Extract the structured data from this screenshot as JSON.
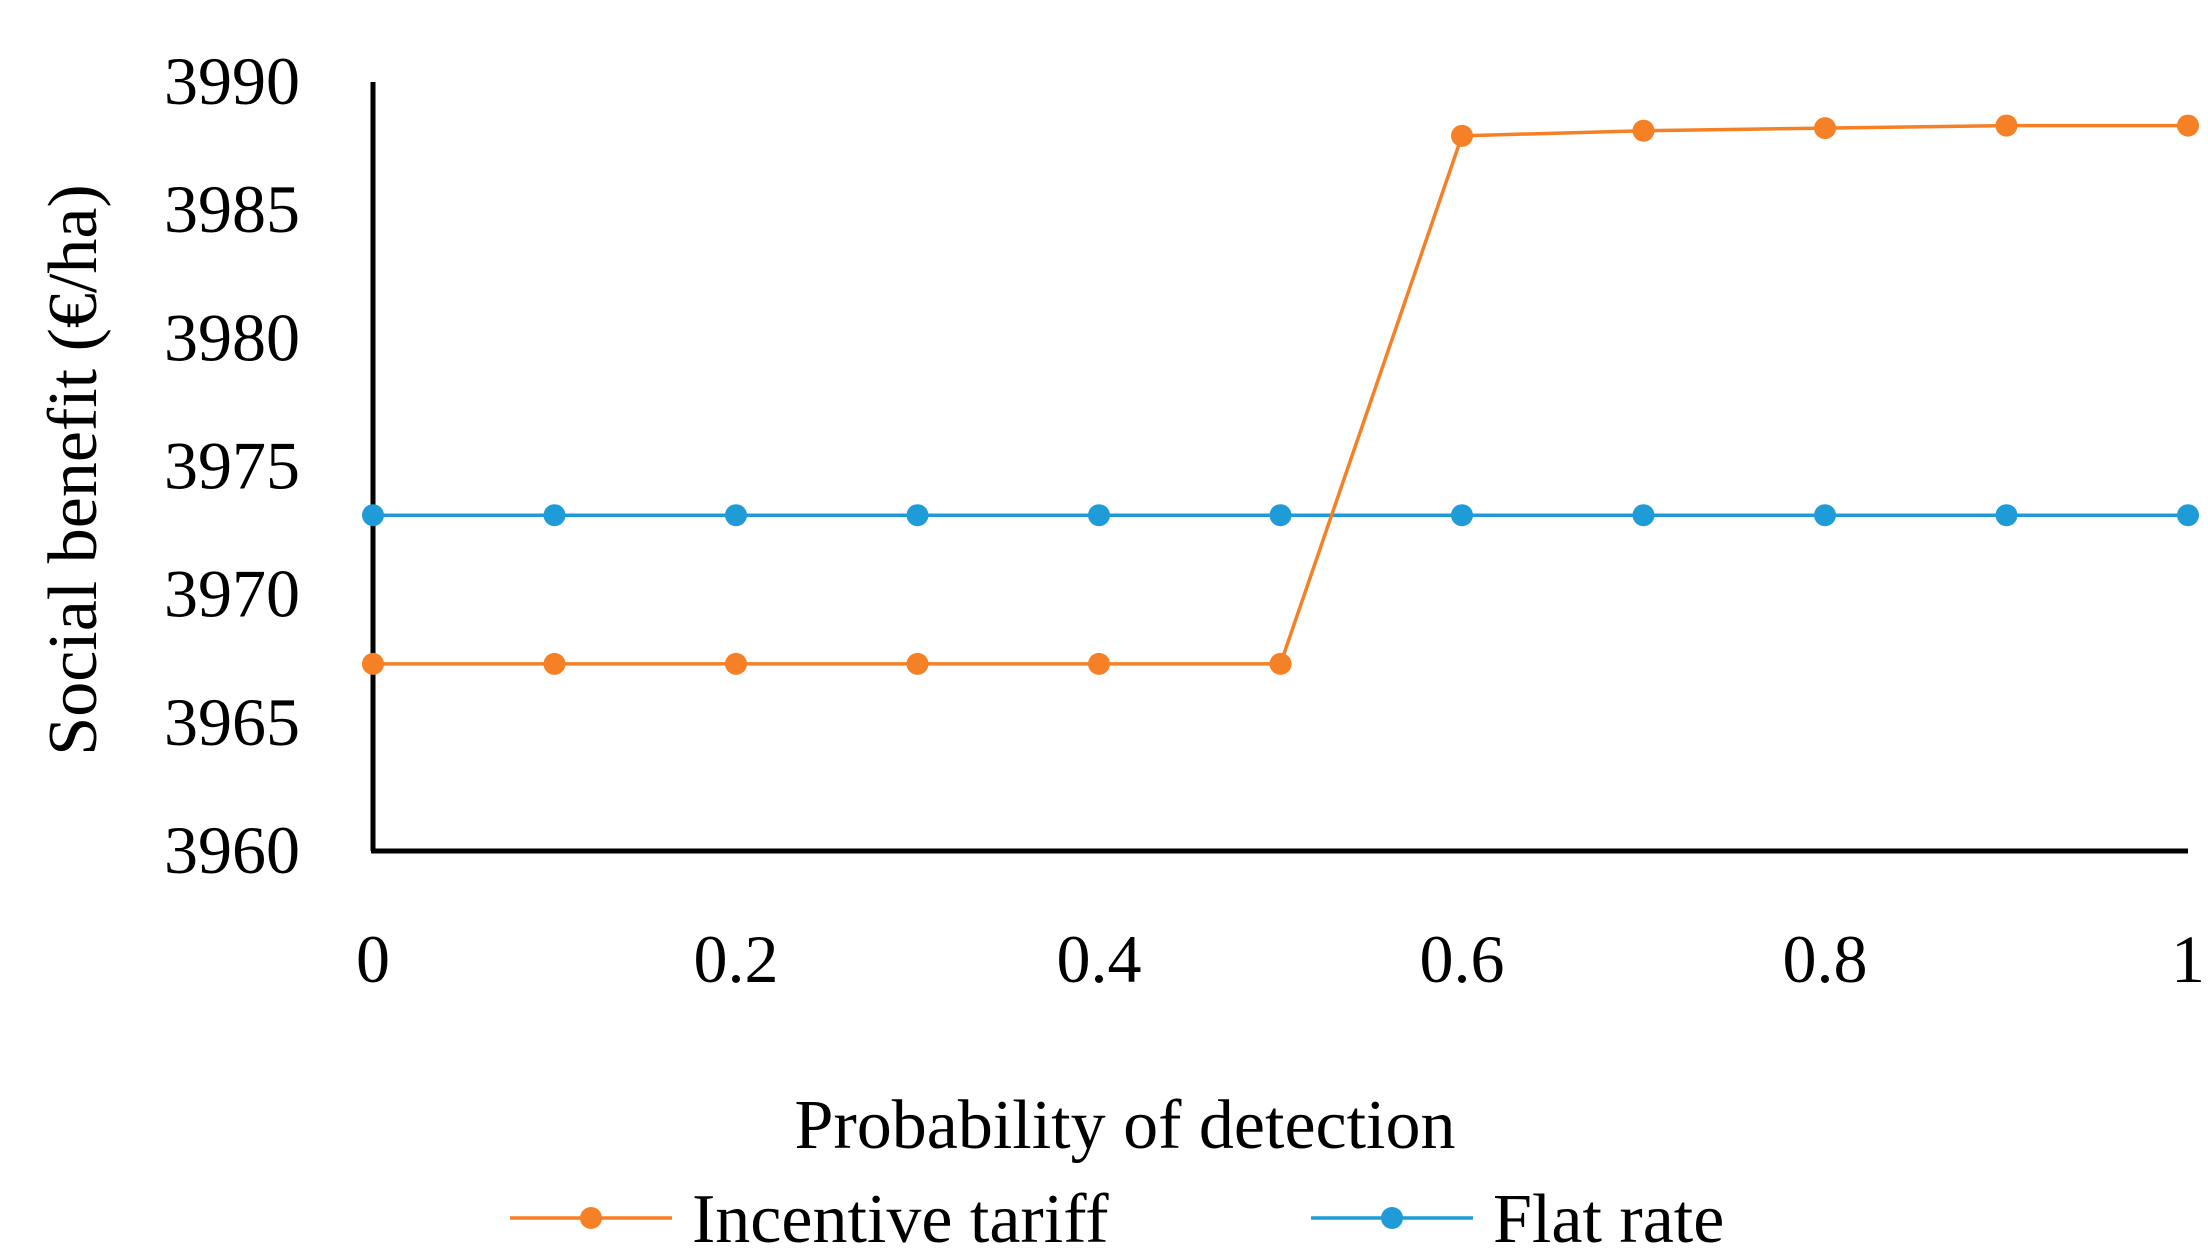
{
  "chart_data": {
    "type": "line",
    "title": "",
    "xlabel": "Probability of detection",
    "ylabel": "Social benefit (€/ha)",
    "x": [
      0,
      0.1,
      0.2,
      0.3,
      0.4,
      0.5,
      0.6,
      0.7,
      0.8,
      0.9,
      1
    ],
    "xticks": [
      0,
      0.2,
      0.4,
      0.6,
      0.8,
      1
    ],
    "xtick_labels": [
      "0",
      "0.2",
      "0.4",
      "0.6",
      "0.8",
      "1"
    ],
    "yticks": [
      3960,
      3965,
      3970,
      3975,
      3980,
      3985,
      3990
    ],
    "ytick_labels": [
      "3960",
      "3965",
      "3970",
      "3975",
      "3980",
      "3985",
      "3990"
    ],
    "xlim": [
      0,
      1
    ],
    "ylim": [
      3960,
      3990
    ],
    "grid": false,
    "legend_position": "bottom",
    "series": [
      {
        "name": "Incentive tariff",
        "color": "#F58025",
        "values": [
          3967.3,
          3967.3,
          3967.3,
          3967.3,
          3967.3,
          3967.3,
          3987.9,
          3988.1,
          3988.2,
          3988.3,
          3988.3
        ]
      },
      {
        "name": "Flat rate",
        "color": "#1F9BD7",
        "values": [
          3973.1,
          3973.1,
          3973.1,
          3973.1,
          3973.1,
          3973.1,
          3973.1,
          3973.1,
          3973.1,
          3973.1,
          3973.1
        ]
      }
    ]
  }
}
